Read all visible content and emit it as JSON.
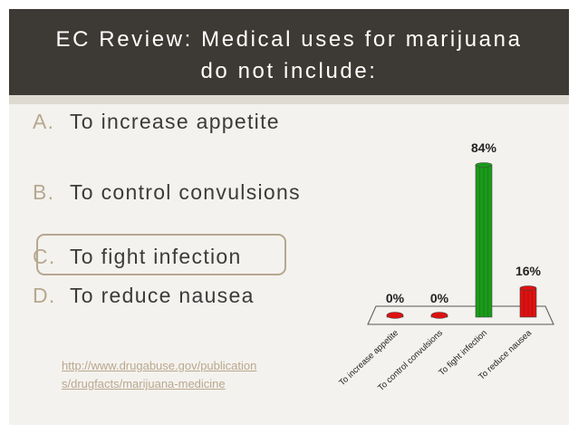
{
  "slide": {
    "title_line1": "EC Review:  Medical uses for marijuana",
    "title_line2": "do not include:"
  },
  "answers": [
    {
      "letter": "A.",
      "text": "To increase appetite"
    },
    {
      "letter": "B.",
      "text": "To control convulsions"
    },
    {
      "letter": "C.",
      "text": "To fight infection"
    },
    {
      "letter": "D.",
      "text": "To reduce nausea"
    }
  ],
  "link": {
    "line1": "http://www.drugabuse.gov/publication",
    "line2": "s/drugfacts/marijuana-medicine"
  },
  "chart_data": {
    "type": "bar",
    "categories": [
      "To increase appetite",
      "To control convulsions",
      "To fight infection",
      "To reduce nausea"
    ],
    "values": [
      0,
      0,
      84,
      16
    ],
    "value_labels": [
      "0%",
      "0%",
      "84%",
      "16%"
    ],
    "ylim": [
      0,
      100
    ],
    "bar_colors": [
      "#dd1111",
      "#dd1111",
      "#1a9a1a",
      "#dd1111"
    ],
    "grid": false,
    "legend": "none"
  }
}
